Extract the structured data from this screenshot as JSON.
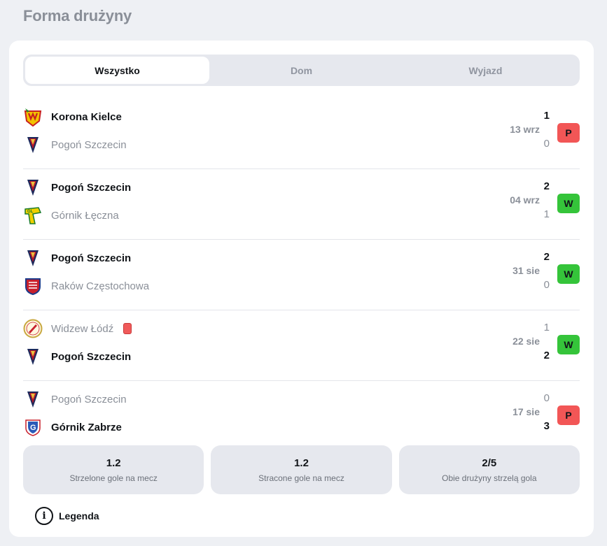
{
  "header": {
    "title": "Forma drużyny"
  },
  "tabs": [
    {
      "label": "Wszystko",
      "active": true
    },
    {
      "label": "Dom",
      "active": false
    },
    {
      "label": "Wyjazd",
      "active": false
    }
  ],
  "matches": [
    {
      "home": {
        "name": "Korona Kielce",
        "logo": "korona-kielce-logo",
        "winner": true,
        "score": "1"
      },
      "away": {
        "name": "Pogoń Szczecin",
        "logo": "pogon-szczecin-logo",
        "winner": false,
        "score": "0"
      },
      "date": "13 wrz",
      "result": "P"
    },
    {
      "home": {
        "name": "Pogoń Szczecin",
        "logo": "pogon-szczecin-logo",
        "winner": true,
        "score": "2"
      },
      "away": {
        "name": "Górnik Łęczna",
        "logo": "gornik-leczna-logo",
        "winner": false,
        "score": "1"
      },
      "date": "04 wrz",
      "result": "W"
    },
    {
      "home": {
        "name": "Pogoń Szczecin",
        "logo": "pogon-szczecin-logo",
        "winner": true,
        "score": "2"
      },
      "away": {
        "name": "Raków Częstochowa",
        "logo": "rakow-czestochowa-logo",
        "winner": false,
        "score": "0"
      },
      "date": "31 sie",
      "result": "W"
    },
    {
      "home": {
        "name": "Widzew Łódź",
        "logo": "widzew-lodz-logo",
        "winner": false,
        "score": "1",
        "red_card": true
      },
      "away": {
        "name": "Pogoń Szczecin",
        "logo": "pogon-szczecin-logo",
        "winner": true,
        "score": "2"
      },
      "date": "22 sie",
      "result": "W"
    },
    {
      "home": {
        "name": "Pogoń Szczecin",
        "logo": "pogon-szczecin-logo",
        "winner": false,
        "score": "0"
      },
      "away": {
        "name": "Górnik Zabrze",
        "logo": "gornik-zabrze-logo",
        "winner": true,
        "score": "3"
      },
      "date": "17 sie",
      "result": "P"
    }
  ],
  "stats": [
    {
      "value": "1.2",
      "label": "Strzelone gole na mecz"
    },
    {
      "value": "1.2",
      "label": "Stracone gole na mecz"
    },
    {
      "value": "2/5",
      "label": "Obie drużyny strzelą gola"
    }
  ],
  "legend": {
    "label": "Legenda",
    "icon": "info-icon"
  },
  "colors": {
    "win": "#35c43a",
    "loss": "#f25656",
    "tab_bg": "#e6e8ee",
    "muted": "#8a8f98"
  }
}
